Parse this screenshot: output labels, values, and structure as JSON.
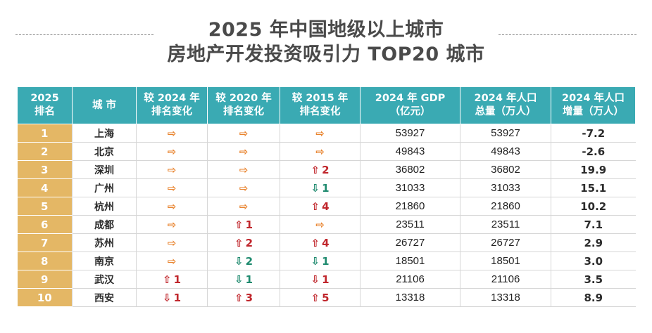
{
  "title": {
    "line1": "2025 年中国地级以上城市",
    "line2": "房地产开发投资吸引力 TOP20 城市"
  },
  "headers": [
    "2025\n排名",
    "城 市",
    "较 2024 年\n排名变化",
    "较 2020 年\n排名变化",
    "较 2015 年\n排名变化",
    "2024 年 GDP\n（亿元）",
    "2024 年人口\n总量（万人）",
    "2024 年人口\n增量（万人）"
  ],
  "rows": [
    {
      "rank": "1",
      "city": "上海",
      "c2024": {
        "dir": "flat",
        "n": ""
      },
      "c2020": {
        "dir": "flat",
        "n": ""
      },
      "c2015": {
        "dir": "flat",
        "n": ""
      },
      "gdp": "53927",
      "pop": "53927",
      "inc": "-7.2"
    },
    {
      "rank": "2",
      "city": "北京",
      "c2024": {
        "dir": "flat",
        "n": ""
      },
      "c2020": {
        "dir": "flat",
        "n": ""
      },
      "c2015": {
        "dir": "flat",
        "n": ""
      },
      "gdp": "49843",
      "pop": "49843",
      "inc": "-2.6"
    },
    {
      "rank": "3",
      "city": "深圳",
      "c2024": {
        "dir": "flat",
        "n": ""
      },
      "c2020": {
        "dir": "flat",
        "n": ""
      },
      "c2015": {
        "dir": "up",
        "n": "2"
      },
      "gdp": "36802",
      "pop": "36802",
      "inc": "19.9"
    },
    {
      "rank": "4",
      "city": "广州",
      "c2024": {
        "dir": "flat",
        "n": ""
      },
      "c2020": {
        "dir": "flat",
        "n": ""
      },
      "c2015": {
        "dir": "down",
        "n": "1"
      },
      "gdp": "31033",
      "pop": "31033",
      "inc": "15.1"
    },
    {
      "rank": "5",
      "city": "杭州",
      "c2024": {
        "dir": "flat",
        "n": ""
      },
      "c2020": {
        "dir": "flat",
        "n": ""
      },
      "c2015": {
        "dir": "up",
        "n": "4"
      },
      "gdp": "21860",
      "pop": "21860",
      "inc": "10.2"
    },
    {
      "rank": "6",
      "city": "成都",
      "c2024": {
        "dir": "flat",
        "n": ""
      },
      "c2020": {
        "dir": "up",
        "n": "1"
      },
      "c2015": {
        "dir": "flat",
        "n": ""
      },
      "gdp": "23511",
      "pop": "23511",
      "inc": "7.1"
    },
    {
      "rank": "7",
      "city": "苏州",
      "c2024": {
        "dir": "flat",
        "n": ""
      },
      "c2020": {
        "dir": "up",
        "n": "2"
      },
      "c2015": {
        "dir": "up",
        "n": "4"
      },
      "gdp": "26727",
      "pop": "26727",
      "inc": "2.9"
    },
    {
      "rank": "8",
      "city": "南京",
      "c2024": {
        "dir": "flat",
        "n": ""
      },
      "c2020": {
        "dir": "down",
        "n": "2"
      },
      "c2015": {
        "dir": "down",
        "n": "1"
      },
      "gdp": "18501",
      "pop": "18501",
      "inc": "3.0"
    },
    {
      "rank": "9",
      "city": "武汉",
      "c2024": {
        "dir": "up",
        "n": "1"
      },
      "c2020": {
        "dir": "down",
        "n": "1"
      },
      "c2015": {
        "dir": "red-down",
        "n": "1"
      },
      "gdp": "21106",
      "pop": "21106",
      "inc": "3.5"
    },
    {
      "rank": "10",
      "city": "西安",
      "c2024": {
        "dir": "red-down",
        "n": "1"
      },
      "c2020": {
        "dir": "up",
        "n": "3"
      },
      "c2015": {
        "dir": "up",
        "n": "5"
      },
      "gdp": "13318",
      "pop": "13318",
      "inc": "8.9"
    }
  ],
  "icons": {
    "flat": "⇨",
    "up": "⇧",
    "down": "⇩"
  },
  "colors": {
    "header_bg": "#3aaab3",
    "rank_bg": "#e4b765",
    "flat_arrow": "#e8812a",
    "up_red": "#c0262c",
    "down_green": "#1e8a6e"
  }
}
